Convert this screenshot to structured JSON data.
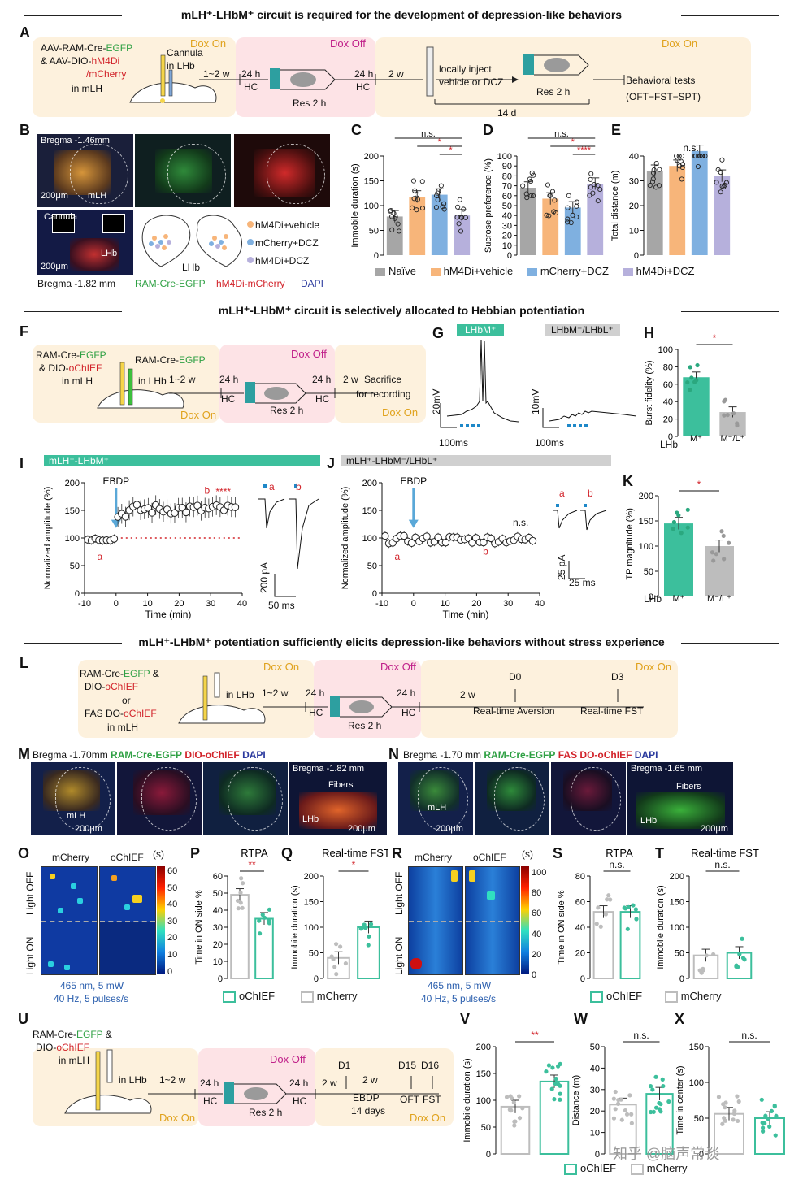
{
  "sections": {
    "s1": "mLH⁺-LHbM⁺ circuit is required for the development of depression-like behaviors",
    "s2": "mLH⁺-LHbM⁺ circuit is selectively allocated to Hebbian potentiation",
    "s3": "mLH⁺-LHbM⁺ potentiation sufficiently elicits depression-like behaviors without stress experience"
  },
  "panelA": {
    "virus_line1": "AAV-RAM-Cre-",
    "virus_egfp": "EGFP",
    "virus_line2": "& AAV-DIO-",
    "virus_hm4di": "hM4Di",
    "virus_mcherry": "/mCherry",
    "virus_region": "in mLH",
    "cannula": "Cannula",
    "cannula_region": "in LHb",
    "dox_on": "Dox On",
    "dox_off": "Dox Off",
    "t1": "1~2 w",
    "t2": "24 h",
    "hc": "HC",
    "res": "Res 2 h",
    "t3": "24 h",
    "t4": "2 w",
    "inject": "locally inject",
    "inject2": "vehicle or DCZ",
    "res2": "Res 2 h",
    "d14": "14 d",
    "behav": "Behavioral tests",
    "behav2": "(OFT−FST−SPT)"
  },
  "panelB": {
    "bregma1": "Bregma -1.46mm",
    "scale1": "200μm",
    "mlh": "mLH",
    "cannula": "Cannula",
    "scale2": "200μm",
    "lhb": "LHb",
    "bregma2": "Bregma -1.82 mm",
    "egfp": "RAM-Cre-EGFP",
    "mch": "hM4Di-mCherry",
    "dapi": "DAPI",
    "leg1": "hM4Di+vehicle",
    "leg2": "mCherry+DCZ",
    "leg3": "hM4Di+DCZ",
    "lhb2": "LHb"
  },
  "legendCDE": [
    "Naïve",
    "hM4Di+vehicle",
    "mCherry+DCZ",
    "hM4Di+DCZ"
  ],
  "colors": {
    "naive": "#a6a6a6",
    "veh": "#f7b57a",
    "mch": "#7fb0e0",
    "dcz": "#b6b0dc",
    "oc": "#3cbf9c",
    "gray": "#bdbdbd",
    "red": "#d2232a"
  },
  "chart_data": [
    {
      "id": "C",
      "type": "bar",
      "ylabel": "Immobile duration (s)",
      "ylim": [
        0,
        200
      ],
      "yticks": [
        0,
        50,
        100,
        150,
        200
      ],
      "categories": [
        "Naïve",
        "hM4Di+vehicle",
        "mCherry+DCZ",
        "hM4Di+DCZ"
      ],
      "values": [
        78,
        118,
        122,
        80
      ],
      "sig": [
        "n.s.",
        "*",
        "*"
      ]
    },
    {
      "id": "D",
      "type": "bar",
      "ylabel": "Sucrose preference (%)",
      "ylim": [
        0,
        100
      ],
      "yticks": [
        0,
        10,
        20,
        30,
        40,
        50,
        60,
        70,
        80,
        90,
        100
      ],
      "categories": [
        "Naïve",
        "hM4Di+vehicle",
        "mCherry+DCZ",
        "hM4Di+DCZ"
      ],
      "values": [
        68,
        57,
        48,
        72
      ],
      "sig": [
        "n.s.",
        "*",
        "****"
      ]
    },
    {
      "id": "E",
      "type": "bar",
      "ylabel": "Total distance (m)",
      "ylim": [
        0,
        40
      ],
      "yticks": [
        0,
        10,
        20,
        30,
        40
      ],
      "categories": [
        "Naïve",
        "hM4Di+vehicle",
        "mCherry+DCZ",
        "hM4Di+DCZ"
      ],
      "values": [
        34,
        36,
        42,
        32
      ],
      "sig": [
        "n.s."
      ]
    },
    {
      "id": "H",
      "type": "bar",
      "ylabel": "Burst fidelity (%)",
      "ylim": [
        0,
        100
      ],
      "yticks": [
        0,
        20,
        40,
        60,
        80,
        100
      ],
      "categories": [
        "M⁺",
        "M⁻/L⁺"
      ],
      "values": [
        68,
        28
      ],
      "sig": [
        "*"
      ]
    },
    {
      "id": "I",
      "type": "scatter",
      "title": "mLH⁺-LHbM⁺",
      "xlabel": "Time (min)",
      "ylabel": "Normalized amplitude (%)",
      "xlim": [
        -10,
        40
      ],
      "ylim": [
        0,
        200
      ],
      "xticks": [
        -10,
        0,
        10,
        20,
        30,
        40
      ],
      "yticks": [
        0,
        50,
        100,
        150,
        200
      ],
      "annot": "EBDP",
      "sig": "****"
    },
    {
      "id": "J",
      "type": "scatter",
      "title": "mLH⁺-LHbM⁻/LHbL⁺",
      "xlabel": "Time (min)",
      "ylabel": "Normalized amplitude (%)",
      "xlim": [
        -10,
        40
      ],
      "ylim": [
        0,
        200
      ],
      "xticks": [
        -10,
        0,
        10,
        20,
        30,
        40
      ],
      "yticks": [
        0,
        50,
        100,
        150,
        200
      ],
      "annot": "EBDP",
      "sig": "n.s."
    },
    {
      "id": "K",
      "type": "bar",
      "ylabel": "LTP magnitude (%)",
      "ylim": [
        0,
        200
      ],
      "yticks": [
        0,
        50,
        100,
        150,
        200
      ],
      "categories": [
        "M⁺",
        "M⁻/L⁺"
      ],
      "values": [
        145,
        100
      ],
      "sig": [
        "*"
      ]
    },
    {
      "id": "P",
      "type": "bar",
      "title": "RTPA",
      "ylabel": "Time in ON side %",
      "ylim": [
        0,
        60
      ],
      "yticks": [
        0,
        10,
        20,
        30,
        40,
        50,
        60
      ],
      "categories": [
        "mCherry",
        "oChIEF"
      ],
      "values": [
        49,
        35
      ],
      "sig": [
        "**"
      ]
    },
    {
      "id": "Q",
      "type": "bar",
      "title": "Real-time FST",
      "ylabel": "Immobile duration (s)",
      "ylim": [
        0,
        200
      ],
      "yticks": [
        0,
        50,
        100,
        150,
        200
      ],
      "categories": [
        "mCherry",
        "oChIEF"
      ],
      "values": [
        40,
        100
      ],
      "sig": [
        "*"
      ]
    },
    {
      "id": "S",
      "type": "bar",
      "title": "RTPA",
      "ylabel": "Time in ON side %",
      "ylim": [
        0,
        80
      ],
      "yticks": [
        0,
        20,
        40,
        60,
        80
      ],
      "categories": [
        "mCherry",
        "oChIEF"
      ],
      "values": [
        52,
        52
      ],
      "sig": [
        "n.s."
      ]
    },
    {
      "id": "T",
      "type": "bar",
      "title": "Real-time FST",
      "ylabel": "Immobile duration (s)",
      "ylim": [
        0,
        200
      ],
      "yticks": [
        0,
        50,
        100,
        150,
        200
      ],
      "categories": [
        "mCherry",
        "oChIEF"
      ],
      "values": [
        45,
        50
      ],
      "sig": [
        "n.s."
      ]
    },
    {
      "id": "V",
      "type": "bar",
      "ylabel": "Immobile duration (s)",
      "ylim": [
        0,
        200
      ],
      "yticks": [
        0,
        50,
        100,
        150,
        200
      ],
      "categories": [
        "mCherry",
        "oChIEF"
      ],
      "values": [
        88,
        135
      ],
      "sig": [
        "**"
      ]
    },
    {
      "id": "W",
      "type": "bar",
      "ylabel": "Distance (m)",
      "ylim": [
        0,
        50
      ],
      "yticks": [
        0,
        10,
        20,
        30,
        40,
        50
      ],
      "categories": [
        "mCherry",
        "oChIEF"
      ],
      "values": [
        23,
        28
      ],
      "sig": [
        "n.s."
      ]
    },
    {
      "id": "X",
      "type": "bar",
      "ylabel": "Time in center (s)",
      "ylim": [
        0,
        150
      ],
      "yticks": [
        0,
        50,
        100,
        150
      ],
      "categories": [
        "mCherry",
        "oChIEF"
      ],
      "values": [
        56,
        50
      ],
      "sig": [
        "n.s."
      ]
    }
  ],
  "panelF": {
    "v1": "RAM-Cre-",
    "egfp": "EGFP",
    "v2": "& DIO-",
    "oc": "oChIEF",
    "v3": "in mLH",
    "v4": "RAM-Cre-",
    "v5": "in LHb",
    "dox_on": "Dox On",
    "dox_off": "Dox Off",
    "t1": "1~2 w",
    "t2": "24 h",
    "hc": "HC",
    "res": "Res 2 h",
    "t3": "24 h",
    "t4": "2 w",
    "sac": "Sacrifice",
    "sac2": "for recording"
  },
  "panelG": {
    "lbl1": "LHbM⁺",
    "lbl2": "LHbM⁻/LHbL⁺",
    "s1": "20mV",
    "s2": "100ms",
    "s3": "10mV",
    "s4": "100ms"
  },
  "panelH": {
    "lhb": "LHb"
  },
  "panelI": {
    "a": "a",
    "b": "b",
    "s1": "200 pA",
    "s2": "50 ms"
  },
  "panelJ": {
    "a": "a",
    "b": "b",
    "s1": "25 pA",
    "s2": "25 ms"
  },
  "panelK": {
    "lhb": "LHb"
  },
  "panelL": {
    "v1": "RAM-Cre-",
    "egfp": "EGFP",
    "v1b": " &",
    "v2": "DIO-",
    "oc": "oChIEF",
    "or": "or",
    "v3": "FAS DO-",
    "v4": "in mLH",
    "lhb": "in LHb",
    "dox_on": "Dox On",
    "dox_off": "Dox Off",
    "t1": "1~2 w",
    "t2": "24 h",
    "hc": "HC",
    "res": "Res 2 h",
    "t3": "24 h",
    "hc2": "HC",
    "t4": "2 w",
    "d0": "D0",
    "d3": "D3",
    "rta": "Real-time Aversion",
    "rtfst": "Real-time FST"
  },
  "panelM": {
    "bregma": "Bregma -1.70mm",
    "egfp": "RAM-Cre-EGFP",
    "oc": "DIO-oChIEF",
    "dapi": "DAPI",
    "mlh": "mLH",
    "scale": "200μm",
    "bregma2": "Bregma -1.82 mm",
    "fibers": "Fibers",
    "lhb": "LHb",
    "scale2": "200μm"
  },
  "panelN": {
    "bregma": "Bregma -1.70 mm",
    "egfp": "RAM-Cre-EGFP",
    "oc": "FAS DO-oChIEF",
    "dapi": "DAPI",
    "mlh": "mLH",
    "scale": "200μm",
    "bregma2": "Bregma -1.65 mm",
    "fibers": "Fibers",
    "lhb": "LHb",
    "scale2": "200μm"
  },
  "panelO": {
    "c1": "mCherry",
    "c2": "oChIEF",
    "unit": "(s)",
    "off": "Light OFF",
    "on": "Light ON",
    "stim1": "465 nm, 5 mW",
    "stim2": "40 Hz, 5 pulses/s",
    "ticks": [
      "60",
      "50",
      "40",
      "30",
      "20",
      "10",
      "0"
    ]
  },
  "panelR": {
    "c1": "mCherry",
    "c2": "oChIEF",
    "unit": "(s)",
    "off": "Light OFF",
    "on": "Light ON",
    "stim1": "465 nm, 5 mW",
    "stim2": "40 Hz, 5 pulses/s",
    "ticks": [
      "100",
      "80",
      "60",
      "40",
      "20",
      "0"
    ]
  },
  "legendPQ": [
    "oChIEF",
    "mCherry"
  ],
  "panelU": {
    "v1": "RAM-Cre-",
    "egfp": "EGFP",
    "v1b": " &",
    "v2": "DIO-",
    "oc": "oChIEF",
    "v3": "in mLH",
    "lhb": "in LHb",
    "dox_on": "Dox On",
    "dox_off": "Dox Off",
    "dox_on2": "Dox On",
    "t1": "1~2 w",
    "t2": "24 h",
    "hc": "HC",
    "res": "Res 2 h",
    "t3": "24 h",
    "hc2": "HC",
    "t4": "2 w",
    "t5": "2 w",
    "d1": "D1",
    "d15": "D15",
    "d16": "D16",
    "ebdp": "EBDP",
    "days": "14 days",
    "oft": "OFT",
    "fst": "FST"
  },
  "watermark": "知乎 @脑声常谈"
}
